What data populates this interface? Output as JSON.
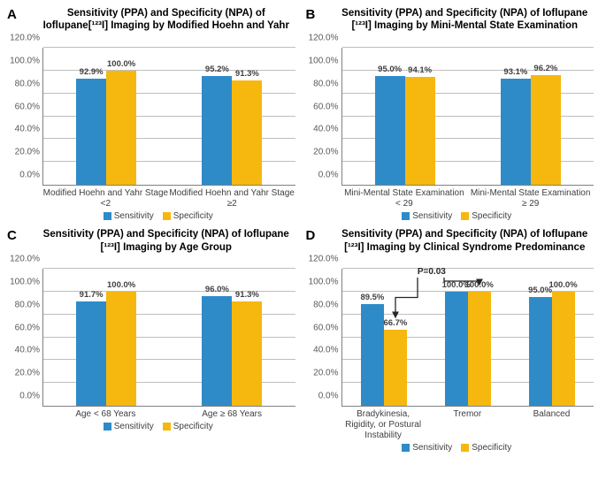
{
  "colors": {
    "sensitivity": "#2e8bc8",
    "specificity": "#f6b80f",
    "gridline": "#bfbfbf",
    "axis": "#808080"
  },
  "y": {
    "max": 120,
    "ticks": [
      0,
      20,
      40,
      60,
      80,
      100,
      120
    ],
    "labels": [
      "0.0%",
      "20.0%",
      "40.0%",
      "60.0%",
      "80.0%",
      "100.0%",
      "120.0%"
    ]
  },
  "legend": {
    "sens": "Sensitivity",
    "spec": "Specificity"
  },
  "panels": {
    "A": {
      "letter": "A",
      "title": "Sensitivity (PPA) and Specificity (NPA) of Ioflupane[¹²³I] Imaging by Modified Hoehn and Yahr",
      "narrow": false,
      "groups": [
        {
          "label": "Modified Hoehn and Yahr Stage <2",
          "sens": {
            "v": 92.9,
            "t": "92.9%"
          },
          "spec": {
            "v": 100.0,
            "t": "100.0%"
          }
        },
        {
          "label": "Modified Hoehn and Yahr Stage ≥2",
          "sens": {
            "v": 95.2,
            "t": "95.2%"
          },
          "spec": {
            "v": 91.3,
            "t": "91.3%"
          }
        }
      ]
    },
    "B": {
      "letter": "B",
      "title": "Sensitivity (PPA) and Specificity (NPA) of Ioflupane [¹²³I] Imaging by Mini-Mental State Examination",
      "narrow": false,
      "groups": [
        {
          "label": "Mini-Mental State Examination < 29",
          "sens": {
            "v": 95.0,
            "t": "95.0%"
          },
          "spec": {
            "v": 94.1,
            "t": "94.1%"
          }
        },
        {
          "label": "Mini-Mental State Examination ≥ 29",
          "sens": {
            "v": 93.1,
            "t": "93.1%"
          },
          "spec": {
            "v": 96.2,
            "t": "96.2%"
          }
        }
      ]
    },
    "C": {
      "letter": "C",
      "title": "Sensitivity (PPA) and Specificity (NPA) of Ioflupane [¹²³I] Imaging by Age Group",
      "narrow": false,
      "groups": [
        {
          "label": "Age < 68 Years",
          "sens": {
            "v": 91.7,
            "t": "91.7%"
          },
          "spec": {
            "v": 100.0,
            "t": "100.0%"
          }
        },
        {
          "label": "Age ≥ 68 Years",
          "sens": {
            "v": 96.0,
            "t": "96.0%"
          },
          "spec": {
            "v": 91.3,
            "t": "91.3%"
          }
        }
      ]
    },
    "D": {
      "letter": "D",
      "title": "Sensitivity (PPA) and Specificity (NPA) of Ioflupane [¹²³I] Imaging by Clinical Syndrome Predominance",
      "narrow": true,
      "annotation": "P=0.03",
      "groups": [
        {
          "label": "Bradykinesia, Rigidity, or Postural Instability",
          "sens": {
            "v": 89.5,
            "t": "89.5%"
          },
          "spec": {
            "v": 66.7,
            "t": "66.7%"
          }
        },
        {
          "label": "Tremor",
          "sens": {
            "v": 100.0,
            "t": "100.0%"
          },
          "spec": {
            "v": 100.0,
            "t": "100.0%"
          }
        },
        {
          "label": "Balanced",
          "sens": {
            "v": 95.0,
            "t": "95.0%"
          },
          "spec": {
            "v": 100.0,
            "t": "100.0%"
          }
        }
      ]
    }
  }
}
